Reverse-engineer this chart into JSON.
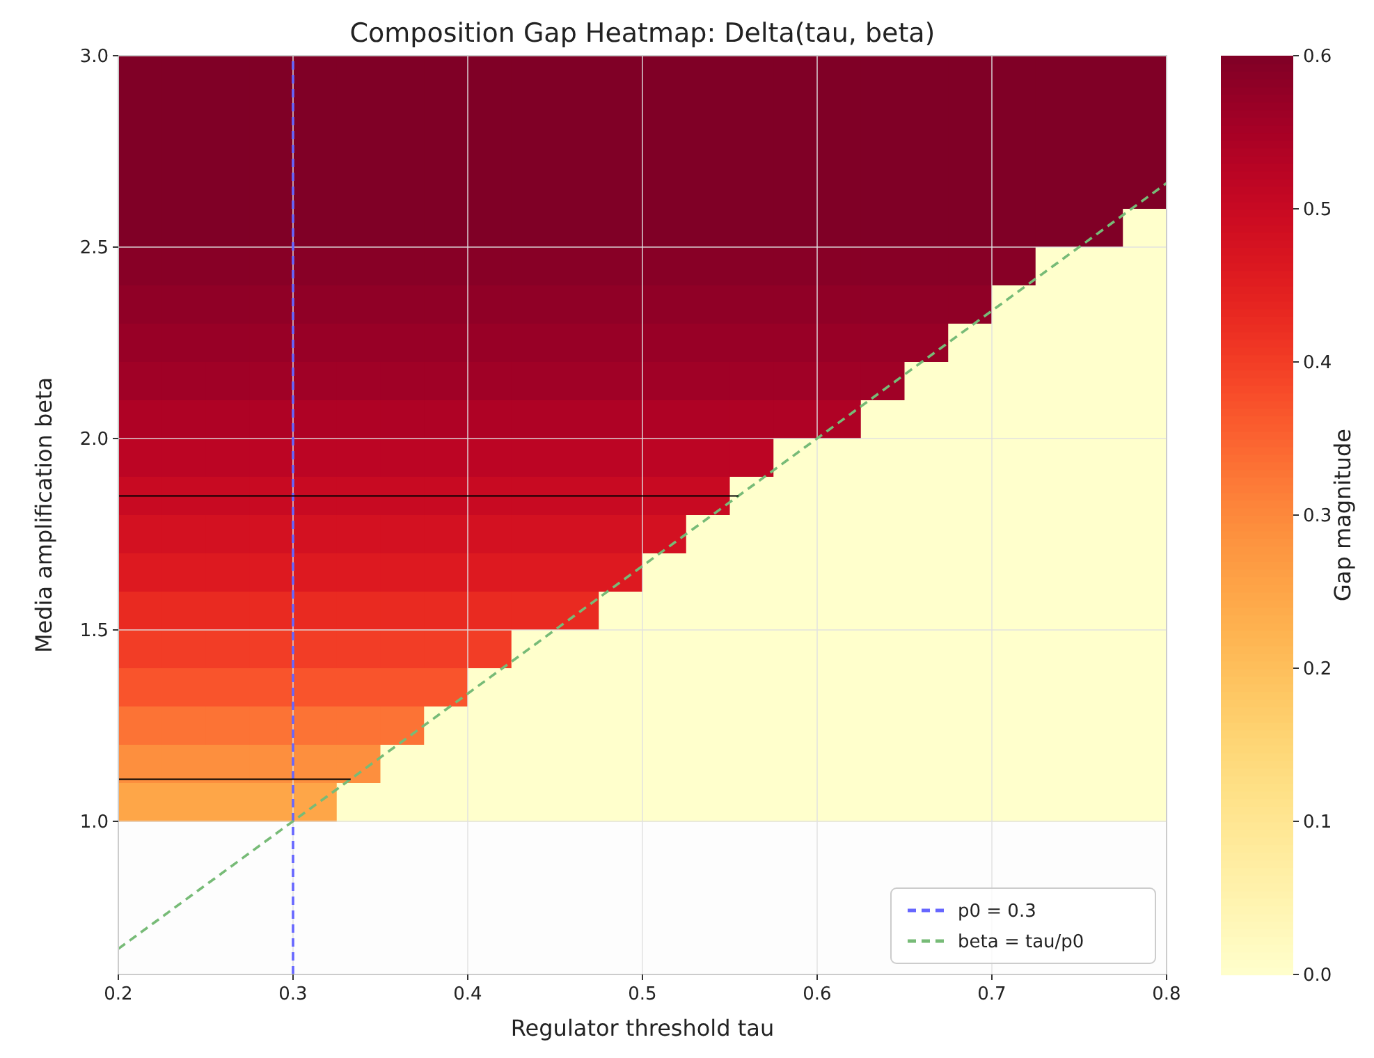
{
  "chart_data": {
    "type": "heatmap",
    "title": "Composition Gap Heatmap: Delta(tau, beta)",
    "xlabel": "Regulator threshold tau",
    "ylabel": "Media amplification beta",
    "clabel": "Gap magnitude",
    "x": [
      0.2125,
      0.2375,
      0.2625,
      0.2875,
      0.3125,
      0.3375,
      0.3625,
      0.3875,
      0.4125,
      0.4375,
      0.4625,
      0.4875,
      0.5125,
      0.5375,
      0.5625,
      0.5875,
      0.6125,
      0.6375,
      0.6625,
      0.6875,
      0.7125,
      0.7375,
      0.7625,
      0.7875
    ],
    "y": [
      2.95,
      2.85,
      2.75,
      2.65,
      2.55,
      2.45,
      2.35,
      2.25,
      2.15,
      2.05,
      1.95,
      1.85,
      1.75,
      1.65,
      1.55,
      1.45,
      1.35,
      1.25,
      1.15,
      1.05
    ],
    "cells": [
      [
        0.6,
        0.6,
        0.6,
        0.6,
        0.6,
        0.6,
        0.6,
        0.6,
        0.6,
        0.6,
        0.6,
        0.6,
        0.6,
        0.6,
        0.6,
        0.6,
        0.6,
        0.6,
        0.6,
        0.6,
        0.6,
        0.6,
        0.6,
        0.6
      ],
      [
        0.6,
        0.6,
        0.6,
        0.6,
        0.6,
        0.6,
        0.6,
        0.6,
        0.6,
        0.6,
        0.6,
        0.6,
        0.6,
        0.6,
        0.6,
        0.6,
        0.6,
        0.6,
        0.6,
        0.6,
        0.6,
        0.6,
        0.6,
        0.6
      ],
      [
        0.6,
        0.6,
        0.6,
        0.6,
        0.6,
        0.6,
        0.6,
        0.6,
        0.6,
        0.6,
        0.6,
        0.6,
        0.6,
        0.6,
        0.6,
        0.6,
        0.6,
        0.6,
        0.6,
        0.6,
        0.6,
        0.6,
        0.6,
        0.6
      ],
      [
        0.6,
        0.6,
        0.6,
        0.6,
        0.6,
        0.6,
        0.6,
        0.6,
        0.6,
        0.6,
        0.6,
        0.6,
        0.6,
        0.6,
        0.6,
        0.6,
        0.6,
        0.6,
        0.6,
        0.6,
        0.6,
        0.6,
        0.6,
        0.6
      ],
      [
        0.6,
        0.6,
        0.6,
        0.6,
        0.6,
        0.6,
        0.6,
        0.6,
        0.6,
        0.6,
        0.6,
        0.6,
        0.6,
        0.6,
        0.6,
        0.6,
        0.6,
        0.6,
        0.6,
        0.6,
        0.6,
        0.6,
        0.6,
        0
      ],
      [
        0.59,
        0.59,
        0.59,
        0.59,
        0.59,
        0.59,
        0.59,
        0.59,
        0.59,
        0.59,
        0.59,
        0.59,
        0.59,
        0.59,
        0.59,
        0.59,
        0.59,
        0.59,
        0.59,
        0.59,
        0.59,
        0,
        0,
        0
      ],
      [
        0.58,
        0.58,
        0.58,
        0.58,
        0.58,
        0.58,
        0.58,
        0.58,
        0.58,
        0.58,
        0.58,
        0.58,
        0.58,
        0.58,
        0.58,
        0.58,
        0.58,
        0.58,
        0.58,
        0.58,
        0,
        0,
        0,
        0
      ],
      [
        0.57,
        0.57,
        0.57,
        0.57,
        0.57,
        0.57,
        0.57,
        0.57,
        0.57,
        0.57,
        0.57,
        0.57,
        0.57,
        0.57,
        0.57,
        0.57,
        0.57,
        0.57,
        0.57,
        0,
        0,
        0,
        0,
        0
      ],
      [
        0.56,
        0.56,
        0.56,
        0.56,
        0.56,
        0.56,
        0.56,
        0.56,
        0.56,
        0.56,
        0.56,
        0.56,
        0.56,
        0.56,
        0.56,
        0.56,
        0.56,
        0.56,
        0,
        0,
        0,
        0,
        0,
        0
      ],
      [
        0.54,
        0.54,
        0.54,
        0.54,
        0.54,
        0.54,
        0.54,
        0.54,
        0.54,
        0.54,
        0.54,
        0.54,
        0.54,
        0.54,
        0.54,
        0.54,
        0.54,
        0,
        0,
        0,
        0,
        0,
        0,
        0
      ],
      [
        0.52,
        0.52,
        0.52,
        0.52,
        0.52,
        0.52,
        0.52,
        0.52,
        0.52,
        0.52,
        0.52,
        0.52,
        0.52,
        0.52,
        0.52,
        0,
        0,
        0,
        0,
        0,
        0,
        0,
        0,
        0
      ],
      [
        0.5,
        0.5,
        0.5,
        0.5,
        0.5,
        0.5,
        0.5,
        0.5,
        0.5,
        0.5,
        0.5,
        0.5,
        0.5,
        0.5,
        0,
        0,
        0,
        0,
        0,
        0,
        0,
        0,
        0,
        0
      ],
      [
        0.48,
        0.48,
        0.48,
        0.48,
        0.48,
        0.48,
        0.48,
        0.48,
        0.48,
        0.48,
        0.48,
        0.48,
        0.48,
        0,
        0,
        0,
        0,
        0,
        0,
        0,
        0,
        0,
        0,
        0
      ],
      [
        0.46,
        0.46,
        0.46,
        0.46,
        0.46,
        0.46,
        0.46,
        0.46,
        0.46,
        0.46,
        0.46,
        0.46,
        0,
        0,
        0,
        0,
        0,
        0,
        0,
        0,
        0,
        0,
        0,
        0
      ],
      [
        0.43,
        0.43,
        0.43,
        0.43,
        0.43,
        0.43,
        0.43,
        0.43,
        0.43,
        0.43,
        0.43,
        0,
        0,
        0,
        0,
        0,
        0,
        0,
        0,
        0,
        0,
        0,
        0,
        0
      ],
      [
        0.4,
        0.4,
        0.4,
        0.4,
        0.4,
        0.4,
        0.4,
        0.4,
        0.4,
        0,
        0,
        0,
        0,
        0,
        0,
        0,
        0,
        0,
        0,
        0,
        0,
        0,
        0,
        0
      ],
      [
        0.37,
        0.37,
        0.37,
        0.37,
        0.37,
        0.37,
        0.37,
        0.37,
        0,
        0,
        0,
        0,
        0,
        0,
        0,
        0,
        0,
        0,
        0,
        0,
        0,
        0,
        0,
        0
      ],
      [
        0.33,
        0.33,
        0.33,
        0.33,
        0.33,
        0.33,
        0.33,
        0,
        0,
        0,
        0,
        0,
        0,
        0,
        0,
        0,
        0,
        0,
        0,
        0,
        0,
        0,
        0,
        0
      ],
      [
        0.29,
        0.29,
        0.29,
        0.29,
        0.29,
        0.29,
        0,
        0,
        0,
        0,
        0,
        0,
        0,
        0,
        0,
        0,
        0,
        0,
        0,
        0,
        0,
        0,
        0,
        0
      ],
      [
        0.25,
        0.25,
        0.25,
        0.25,
        0.25,
        0,
        0,
        0,
        0,
        0,
        0,
        0,
        0,
        0,
        0,
        0,
        0,
        0,
        0,
        0,
        0,
        0,
        0,
        0
      ]
    ],
    "xlim": [
      0.2,
      0.8
    ],
    "xticks": [
      0.2,
      0.3,
      0.4,
      0.5,
      0.6,
      0.7,
      0.8
    ],
    "ylim": [
      0.6,
      3.0
    ],
    "yticks": [
      {
        "value": 1.0,
        "label": "1.0"
      },
      {
        "value": 1.5,
        "label": "1.5"
      },
      {
        "value": 2.0,
        "label": "2.0"
      },
      {
        "value": 2.5,
        "label": "2.5"
      },
      {
        "value": 3.0,
        "label": "3.0"
      }
    ],
    "clim": [
      0,
      0.6
    ],
    "cticks": [
      {
        "value": 0,
        "label": "0.0"
      },
      {
        "value": 0.1,
        "label": "0.1"
      },
      {
        "value": 0.2,
        "label": "0.2"
      },
      {
        "value": 0.3,
        "label": "0.3"
      },
      {
        "value": 0.4,
        "label": "0.4"
      },
      {
        "value": 0.5,
        "label": "0.5"
      },
      {
        "value": 0.6,
        "label": "0.6"
      }
    ],
    "series": [
      {
        "type": "line",
        "name": "p0 = 0.3",
        "color": "#6666ff",
        "line_style": "dashed",
        "x": [
          0.3,
          0.3
        ],
        "values": [
          0.6,
          3.0
        ]
      },
      {
        "type": "line",
        "name": "beta = tau/p0",
        "color": "#77bb77",
        "line_style": "dashed",
        "x": [
          0.2,
          0.8
        ],
        "values": [
          0.667,
          2.667
        ]
      },
      {
        "type": "line",
        "color": "#000000",
        "line_style": "solid",
        "x": [
          0.2,
          0.333
        ],
        "values": [
          1.11,
          1.11
        ]
      },
      {
        "type": "line",
        "color": "#000000",
        "line_style": "solid",
        "x": [
          0.2,
          0.555
        ],
        "values": [
          1.85,
          1.85
        ]
      }
    ],
    "grid": true,
    "legend": "bottom right"
  }
}
